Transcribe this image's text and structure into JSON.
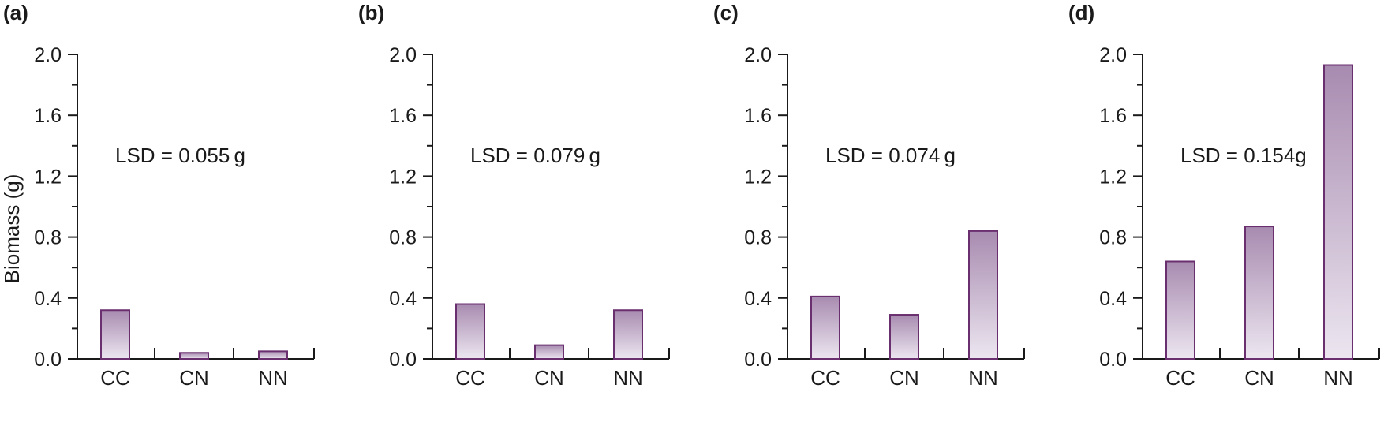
{
  "figure": {
    "ylabel": "Biomass (g)"
  },
  "chart_data": [
    {
      "type": "bar",
      "panel": "(a)",
      "annotation": "LSD = 0.055 g",
      "categories": [
        "CC",
        "CN",
        "NN"
      ],
      "values": [
        0.32,
        0.04,
        0.05
      ],
      "ylabel": "Biomass (g)",
      "ylim": [
        0,
        2.0
      ],
      "yticks": [
        "0.0",
        "0.4",
        "0.8",
        "1.2",
        "1.6",
        "2.0"
      ]
    },
    {
      "type": "bar",
      "panel": "(b)",
      "annotation": "LSD = 0.079 g",
      "categories": [
        "CC",
        "CN",
        "NN"
      ],
      "values": [
        0.36,
        0.09,
        0.32
      ],
      "ylim": [
        0,
        2.0
      ],
      "yticks": [
        "0.0",
        "0.4",
        "0.8",
        "1.2",
        "1.6",
        "2.0"
      ]
    },
    {
      "type": "bar",
      "panel": "(c)",
      "annotation": "LSD = 0.074 g",
      "categories": [
        "CC",
        "CN",
        "NN"
      ],
      "values": [
        0.41,
        0.29,
        0.84
      ],
      "ylim": [
        0,
        2.0
      ],
      "yticks": [
        "0.0",
        "0.4",
        "0.8",
        "1.2",
        "1.6",
        "2.0"
      ]
    },
    {
      "type": "bar",
      "panel": "(d)",
      "annotation": "LSD = 0.154g",
      "categories": [
        "CC",
        "CN",
        "NN"
      ],
      "values": [
        0.64,
        0.87,
        1.93
      ],
      "ylim": [
        0,
        2.0
      ],
      "yticks": [
        "0.0",
        "0.4",
        "0.8",
        "1.2",
        "1.6",
        "2.0"
      ]
    }
  ],
  "colors": {
    "bar_top": "#a88bb0",
    "bar_bottom": "#ece6f0",
    "bar_stroke": "#6a2f6e",
    "axis": "#1a1a1a"
  }
}
